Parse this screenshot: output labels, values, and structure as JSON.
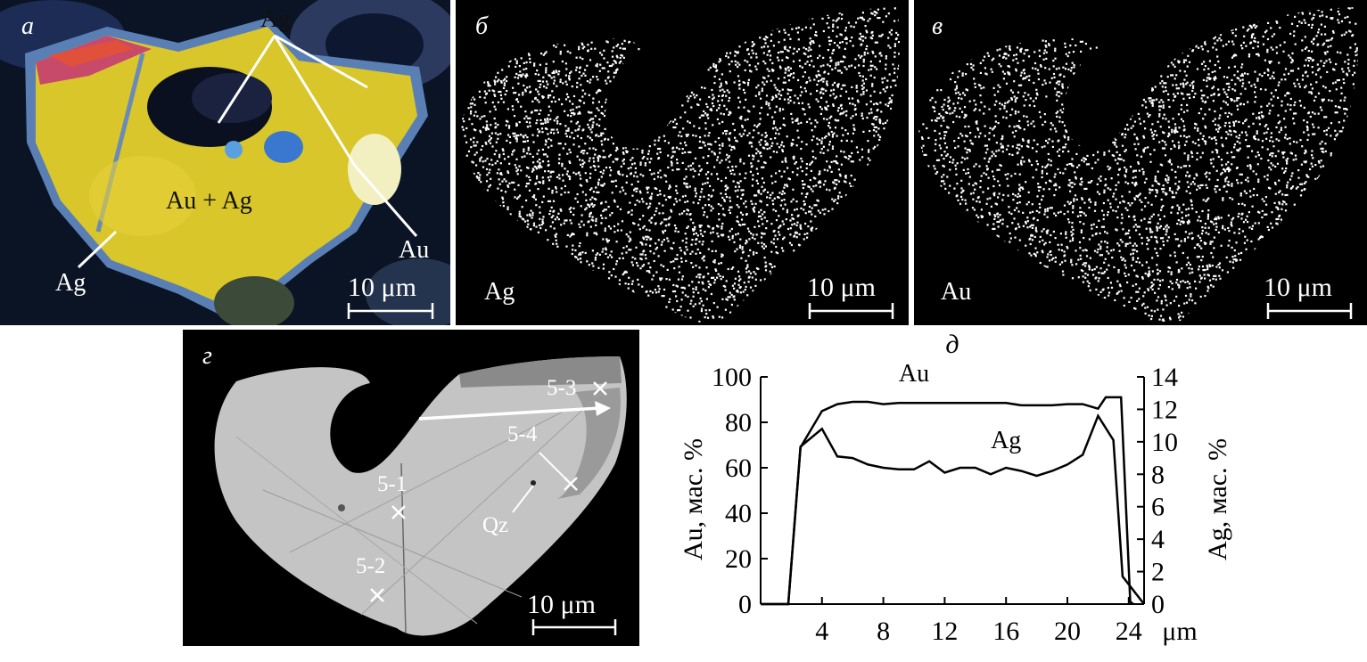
{
  "panels": {
    "a": {
      "letter": "a",
      "labels": {
        "ag_top": "Ag",
        "au_ag": "Au + Ag",
        "ag_left": "Ag",
        "au": "Au"
      },
      "scale_bar": "10 μm"
    },
    "b": {
      "letter": "б",
      "element": "Ag",
      "scale_bar": "10 μm"
    },
    "v": {
      "letter": "в",
      "element": "Au",
      "scale_bar": "10 μm"
    },
    "g": {
      "letter": "г",
      "points": [
        "5-1",
        "5-2",
        "5-3",
        "5-4"
      ],
      "qz": "Qz",
      "scale_bar": "10 μm"
    },
    "d": {
      "letter": "д"
    }
  },
  "chart_data": {
    "type": "line",
    "xlabel": "μm",
    "ylabel_left": "Au, мас. %",
    "ylabel_right": "Ag, мас. %",
    "xlim": [
      0,
      25
    ],
    "ylim_left": [
      0,
      100
    ],
    "ylim_right": [
      0,
      14
    ],
    "x_ticks": [
      4,
      8,
      12,
      16,
      20,
      24
    ],
    "y_left_ticks": [
      0,
      20,
      40,
      60,
      80,
      100
    ],
    "y_right_ticks": [
      0,
      2,
      4,
      6,
      8,
      10,
      12,
      14
    ],
    "grid": false,
    "series": [
      {
        "name": "Au",
        "axis": "left",
        "x": [
          0,
          1.8,
          2.6,
          4,
          5,
          6,
          7,
          8,
          9,
          10,
          11,
          12,
          13,
          14,
          15,
          16,
          17,
          18,
          19,
          20,
          21,
          22,
          22.5,
          23.5,
          24.1,
          24.3
        ],
        "y": [
          0,
          0,
          69,
          85,
          88,
          89,
          89,
          88,
          88.5,
          88.5,
          88.5,
          88.5,
          88.5,
          88.5,
          88.5,
          88.5,
          87.5,
          87.5,
          87.5,
          88,
          88,
          86,
          91,
          91,
          1,
          0
        ]
      },
      {
        "name": "Ag",
        "axis": "right",
        "x": [
          0,
          1.8,
          2.6,
          4,
          5,
          6,
          7,
          8,
          9,
          10,
          11,
          12,
          13,
          14,
          15,
          16,
          17,
          18,
          19,
          20,
          21,
          22,
          23,
          23.6,
          25
        ],
        "y": [
          0,
          0,
          9.7,
          10.8,
          9.1,
          9.0,
          8.6,
          8.4,
          8.3,
          8.3,
          8.8,
          8.1,
          8.4,
          8.4,
          8.0,
          8.4,
          8.2,
          7.9,
          8.2,
          8.6,
          9.2,
          11.6,
          10.1,
          1.7,
          0
        ]
      }
    ]
  }
}
